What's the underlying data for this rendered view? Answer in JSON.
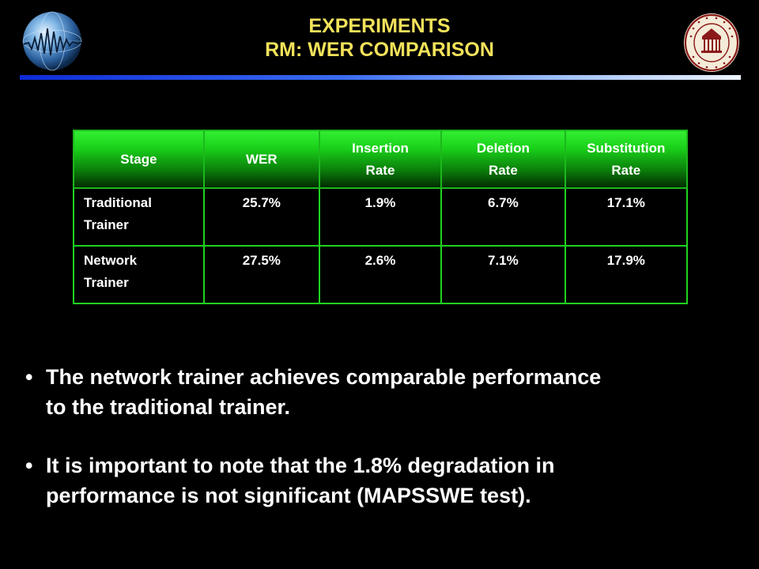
{
  "title": {
    "line1": "EXPERIMENTS",
    "line2": "RM: WER COMPARISON"
  },
  "colors": {
    "title": "#f2e25a",
    "table_border": "#1fd21f",
    "header_gradient_top": "#33ee33",
    "rule_left": "#0d2bd6",
    "rule_right": "#eef4ff"
  },
  "logos": {
    "left": "globe-waveform-logo",
    "right": "mississippi-state-university-seal"
  },
  "table": {
    "headers": [
      [
        "Stage"
      ],
      [
        "WER"
      ],
      [
        "Insertion",
        "Rate"
      ],
      [
        "Deletion",
        "Rate"
      ],
      [
        "Substitution",
        "Rate"
      ]
    ],
    "rows": [
      [
        [
          "Traditional",
          "Trainer"
        ],
        "25.7%",
        "1.9%",
        "6.7%",
        "17.1%"
      ],
      [
        [
          "Network",
          "Trainer"
        ],
        "27.5%",
        "2.6%",
        "7.1%",
        "17.9%"
      ]
    ]
  },
  "bullets": [
    {
      "line1": "The network trainer achieves comparable performance",
      "line2": "to the traditional trainer."
    },
    {
      "line1": "It is important to note that the 1.8% degradation in",
      "line2": "performance is not significant (MAPSSWE test)."
    }
  ]
}
